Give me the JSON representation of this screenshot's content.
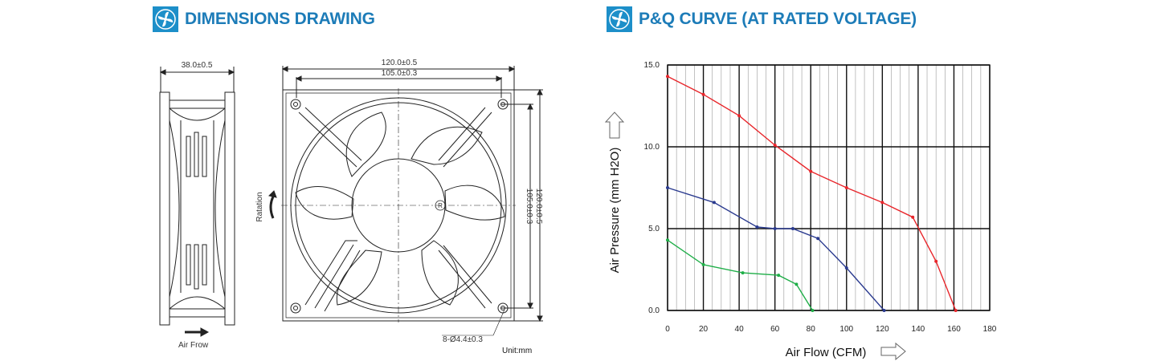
{
  "dimensions": {
    "title": "DIMENSIONS DRAWING",
    "side_width": "38.0±0.5",
    "front_width_outer": "120.0±0.5",
    "front_width_inner": "105.0±0.3",
    "front_height_inner": "105.0±0.3",
    "front_height_outer": "120.0±0.5",
    "hole_spec": "8-Ø4.4±0.3",
    "rotation_label": "Ratation",
    "airflow_label": "Air Frow",
    "unit_label": "Unit:mm",
    "brand_mark": "R"
  },
  "pq": {
    "title": "P&Q CURVE (AT RATED VOLTAGE)",
    "chart_data": {
      "type": "line",
      "title": "P&Q CURVE (AT RATED VOLTAGE)",
      "xlabel": "Air Flow (CFM)",
      "ylabel": "Air Pressure (mm H2O)",
      "xlim": [
        0,
        180
      ],
      "ylim": [
        0,
        15
      ],
      "x_ticks": [
        "0",
        "20",
        "40",
        "60",
        "80",
        "100",
        "120",
        "140",
        "160",
        "180"
      ],
      "y_ticks": [
        "0.0",
        "5.0",
        "10.0",
        "15.0"
      ],
      "grid": true,
      "series": [
        {
          "color": "#e8262b",
          "points": [
            [
              0,
              14.3
            ],
            [
              20,
              13.2
            ],
            [
              40,
              11.9
            ],
            [
              60,
              10.1
            ],
            [
              80,
              8.5
            ],
            [
              100,
              7.5
            ],
            [
              120,
              6.6
            ],
            [
              137,
              5.7
            ],
            [
              150,
              3.0
            ],
            [
              161,
              0.0
            ]
          ]
        },
        {
          "color": "#2a3a8f",
          "points": [
            [
              0,
              7.5
            ],
            [
              26,
              6.6
            ],
            [
              50,
              5.1
            ],
            [
              60,
              5.0
            ],
            [
              70,
              5.0
            ],
            [
              84,
              4.4
            ],
            [
              100,
              2.6
            ],
            [
              121,
              0.0
            ]
          ]
        },
        {
          "color": "#1fae48",
          "points": [
            [
              0,
              4.3
            ],
            [
              20,
              2.8
            ],
            [
              42,
              2.3
            ],
            [
              62,
              2.15
            ],
            [
              72,
              1.6
            ],
            [
              81,
              0.0
            ]
          ]
        }
      ]
    }
  }
}
